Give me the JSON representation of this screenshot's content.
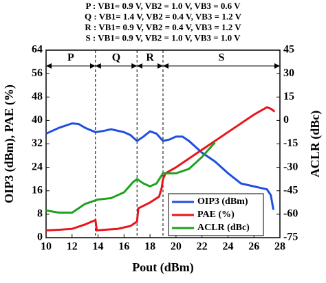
{
  "chart_data": {
    "type": "line",
    "header_lines": [
      "P : VB1= 0.9 V, VB2 = 1.0 V, VB3 = 0.6 V",
      "Q : VB1= 1.4 V, VB2 = 0.4 V, VB3 = 1.2 V",
      "R : VB1= 0.9 V, VB2 = 0.4 V, VB3 = 1.2 V",
      "S : VB1= 0.9 V, VB2 = 1.0 V, VB3 = 1.0 V"
    ],
    "regions": [
      {
        "label": "P",
        "from": 10,
        "to": 13.8
      },
      {
        "label": "Q",
        "from": 13.8,
        "to": 17
      },
      {
        "label": "R",
        "from": 17,
        "to": 19
      },
      {
        "label": "S",
        "from": 19,
        "to": 28
      }
    ],
    "xlabel": "Pout (dBm)",
    "ylabel": "OIP3 (dBm), PAE (%)",
    "y2label": "ACLR (dBc)",
    "xlim": [
      10,
      28
    ],
    "xticks": [
      10,
      12,
      14,
      16,
      18,
      20,
      22,
      24,
      26,
      28
    ],
    "ylim": [
      0,
      64
    ],
    "yticks": [
      0,
      8,
      16,
      24,
      32,
      40,
      48,
      56,
      64
    ],
    "y2lim": [
      -75,
      45
    ],
    "y2ticks": [
      -75,
      -60,
      -45,
      -30,
      -15,
      0,
      15,
      30,
      45
    ],
    "series": [
      {
        "name": "OIP3 (dBm)",
        "color": "#1f4fe0",
        "axis": "y",
        "x": [
          10,
          11,
          12,
          12.5,
          13,
          13.8,
          14.5,
          15,
          16,
          16.5,
          17,
          17.5,
          18,
          18.5,
          19,
          19.5,
          20,
          20.5,
          21,
          22,
          23,
          24,
          25,
          26,
          27,
          27.3,
          27.5
        ],
        "values": [
          35.5,
          37.5,
          39,
          38.8,
          37.5,
          36,
          36.5,
          37,
          36,
          35,
          33,
          34.5,
          36.3,
          35.5,
          33,
          33.5,
          34.5,
          34.5,
          33,
          29,
          26,
          22,
          18.5,
          17.5,
          16.5,
          14.5,
          9.5
        ]
      },
      {
        "name": "PAE (%)",
        "color": "#e8141c",
        "axis": "y",
        "x": [
          10,
          11,
          12,
          13,
          13.8,
          13.9,
          14.5,
          15.5,
          16.5,
          17,
          17.1,
          18,
          18.7,
          18.9,
          19,
          19.2,
          20,
          22,
          24,
          26,
          27,
          27.3,
          27.6
        ],
        "values": [
          2.5,
          2.7,
          3,
          4.5,
          6,
          2.5,
          2.7,
          3,
          4,
          5.5,
          10,
          12,
          14,
          17,
          20,
          22,
          24,
          30,
          36,
          42,
          44.5,
          44,
          43
        ]
      },
      {
        "name": "ACLR (dBc)",
        "color": "#1fa01f",
        "axis": "y2",
        "x": [
          10,
          11,
          12,
          13,
          14,
          15,
          16,
          16.7,
          17,
          17.5,
          18,
          18.5,
          19,
          20,
          21,
          22,
          23
        ],
        "values": [
          -57.6,
          -59,
          -59,
          -53.4,
          -50.6,
          -49.7,
          -46,
          -39.4,
          -37.5,
          -40.3,
          -42.2,
          -40.3,
          -33.8,
          -33.8,
          -31,
          -23.4,
          -14
        ]
      }
    ]
  }
}
